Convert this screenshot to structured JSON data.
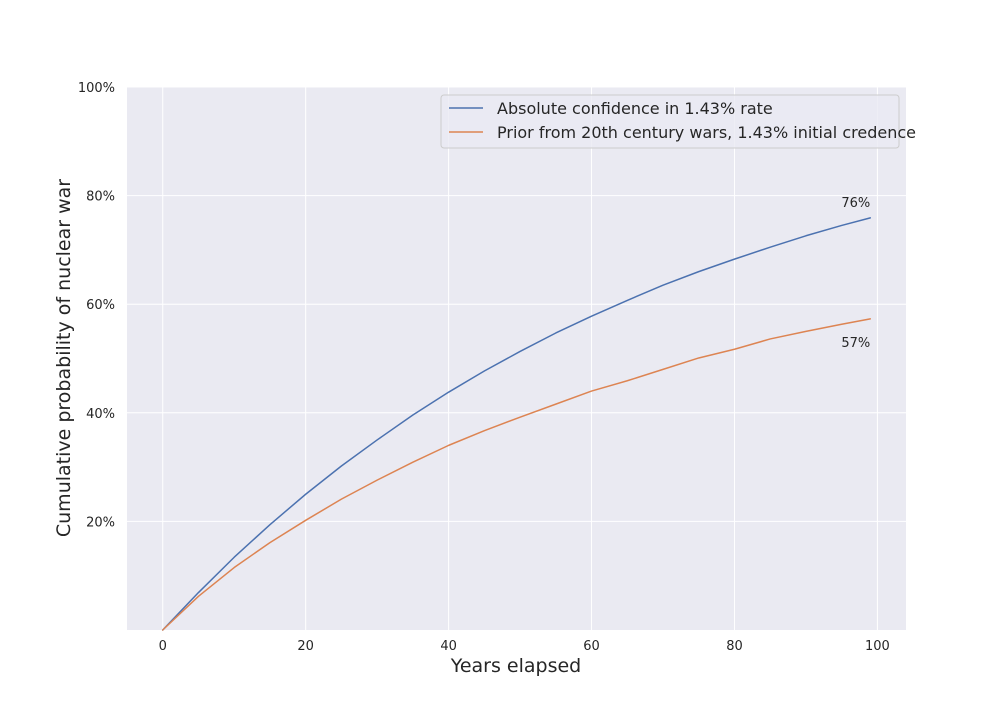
{
  "chart_data": {
    "type": "line",
    "title": "",
    "xlabel": "Years elapsed",
    "ylabel": "Cumulative probability of nuclear war",
    "xlim": [
      -5,
      104
    ],
    "ylim": [
      0,
      1
    ],
    "x_ticks": [
      0,
      20,
      40,
      60,
      80,
      100
    ],
    "x_tick_labels": [
      "0",
      "20",
      "40",
      "60",
      "80",
      "100"
    ],
    "y_ticks": [
      0.2,
      0.4,
      0.6,
      0.8,
      1.0
    ],
    "y_tick_labels": [
      "20%",
      "40%",
      "60%",
      "80%",
      "100%"
    ],
    "grid": true,
    "legend_position": "top-right",
    "colors": {
      "background": "#eaeaf2",
      "grid": "#ffffff",
      "series_1": "#4c72b0",
      "series_2": "#dd8452"
    },
    "series": [
      {
        "name": "Absolute confidence in 1.43% rate",
        "color": "#4c72b0",
        "x": [
          0,
          5,
          10,
          15,
          20,
          25,
          30,
          35,
          40,
          45,
          50,
          55,
          60,
          65,
          70,
          75,
          80,
          85,
          90,
          95,
          99
        ],
        "values": [
          0.0,
          0.069,
          0.134,
          0.194,
          0.25,
          0.302,
          0.35,
          0.396,
          0.438,
          0.477,
          0.513,
          0.547,
          0.578,
          0.607,
          0.635,
          0.66,
          0.683,
          0.705,
          0.726,
          0.745,
          0.759
        ]
      },
      {
        "name": "Prior from 20th century wars, 1.43% initial credence",
        "color": "#dd8452",
        "x": [
          0,
          5,
          10,
          15,
          20,
          25,
          30,
          35,
          40,
          45,
          50,
          55,
          60,
          65,
          70,
          75,
          80,
          85,
          90,
          95,
          99
        ],
        "values": [
          0.0,
          0.062,
          0.115,
          0.161,
          0.202,
          0.241,
          0.276,
          0.309,
          0.34,
          0.367,
          0.392,
          0.416,
          0.44,
          0.459,
          0.48,
          0.501,
          0.517,
          0.536,
          0.55,
          0.563,
          0.573
        ]
      }
    ],
    "annotations": [
      {
        "text": "76%",
        "x": 99,
        "y": 0.759,
        "placement": "above"
      },
      {
        "text": "57%",
        "x": 99,
        "y": 0.573,
        "placement": "below"
      }
    ]
  }
}
